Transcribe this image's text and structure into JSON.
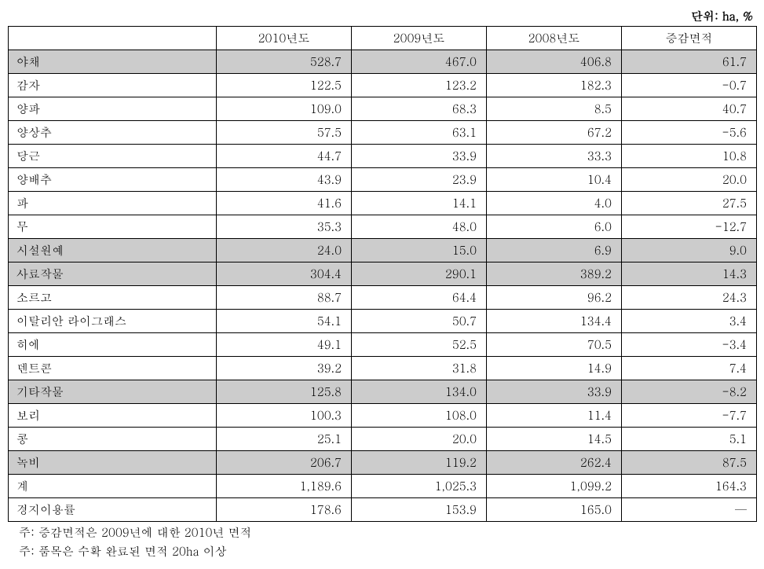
{
  "unit_label": "단위: ha, %",
  "columns": {
    "label": "",
    "y2010": "2010년도",
    "y2009": "2009년도",
    "y2008": "2008년도",
    "change": "증감면적"
  },
  "rows": [
    {
      "shaded": true,
      "label": "야채",
      "y2010": "528.7",
      "y2009": "467.0",
      "y2008": "406.8",
      "change": "61.7"
    },
    {
      "shaded": false,
      "label": "감자",
      "y2010": "122.5",
      "y2009": "123.2",
      "y2008": "182.3",
      "change": "-0.7"
    },
    {
      "shaded": false,
      "label": "양파",
      "y2010": "109.0",
      "y2009": "68.3",
      "y2008": "8.5",
      "change": "40.7"
    },
    {
      "shaded": false,
      "label": "양상추",
      "y2010": "57.5",
      "y2009": "63.1",
      "y2008": "67.2",
      "change": "-5.6"
    },
    {
      "shaded": false,
      "label": "당근",
      "y2010": "44.7",
      "y2009": "33.9",
      "y2008": "33.3",
      "change": "10.8"
    },
    {
      "shaded": false,
      "label": "양배추",
      "y2010": "43.9",
      "y2009": "23.9",
      "y2008": "10.4",
      "change": "20.0"
    },
    {
      "shaded": false,
      "label": "파",
      "y2010": "41.6",
      "y2009": "14.1",
      "y2008": "4.0",
      "change": "27.5"
    },
    {
      "shaded": false,
      "label": "무",
      "y2010": "35.3",
      "y2009": "48.0",
      "y2008": "6.0",
      "change": "-12.7"
    },
    {
      "shaded": true,
      "label": "시설원예",
      "y2010": "24.0",
      "y2009": "15.0",
      "y2008": "6.9",
      "change": "9.0"
    },
    {
      "shaded": true,
      "label": "사료작물",
      "y2010": "304.4",
      "y2009": "290.1",
      "y2008": "389.2",
      "change": "14.3"
    },
    {
      "shaded": false,
      "label": "소르고",
      "y2010": "88.7",
      "y2009": "64.4",
      "y2008": "96.2",
      "change": "24.3"
    },
    {
      "shaded": false,
      "label": "이탈리안 라이그래스",
      "y2010": "54.1",
      "y2009": "50.7",
      "y2008": "134.4",
      "change": "3.4"
    },
    {
      "shaded": false,
      "label": "히에",
      "y2010": "49.1",
      "y2009": "52.5",
      "y2008": "70.5",
      "change": "-3.4"
    },
    {
      "shaded": false,
      "label": "덴트콘",
      "y2010": "39.2",
      "y2009": "31.8",
      "y2008": "14.9",
      "change": "7.4"
    },
    {
      "shaded": true,
      "label": "기타작물",
      "y2010": "125.8",
      "y2009": "134.0",
      "y2008": "33.9",
      "change": "-8.2"
    },
    {
      "shaded": false,
      "label": "보리",
      "y2010": "100.3",
      "y2009": "108.0",
      "y2008": "11.4",
      "change": "-7.7"
    },
    {
      "shaded": false,
      "label": "콩",
      "y2010": "25.1",
      "y2009": "20.0",
      "y2008": "14.5",
      "change": "5.1"
    },
    {
      "shaded": true,
      "label": "녹비",
      "y2010": "206.7",
      "y2009": "119.2",
      "y2008": "262.4",
      "change": "87.5"
    },
    {
      "shaded": false,
      "label": "계",
      "y2010": "1,189.6",
      "y2009": "1,025.3",
      "y2008": "1,099.2",
      "change": "164.3"
    },
    {
      "shaded": false,
      "label": "경지이용률",
      "y2010": "178.6",
      "y2009": "153.9",
      "y2008": "165.0",
      "change": "—"
    }
  ],
  "notes": [
    "주: 증감면적은 2009년에 대한 2010년 면적",
    "주: 품목은 수확 완료된 면적 20ha 이상"
  ]
}
